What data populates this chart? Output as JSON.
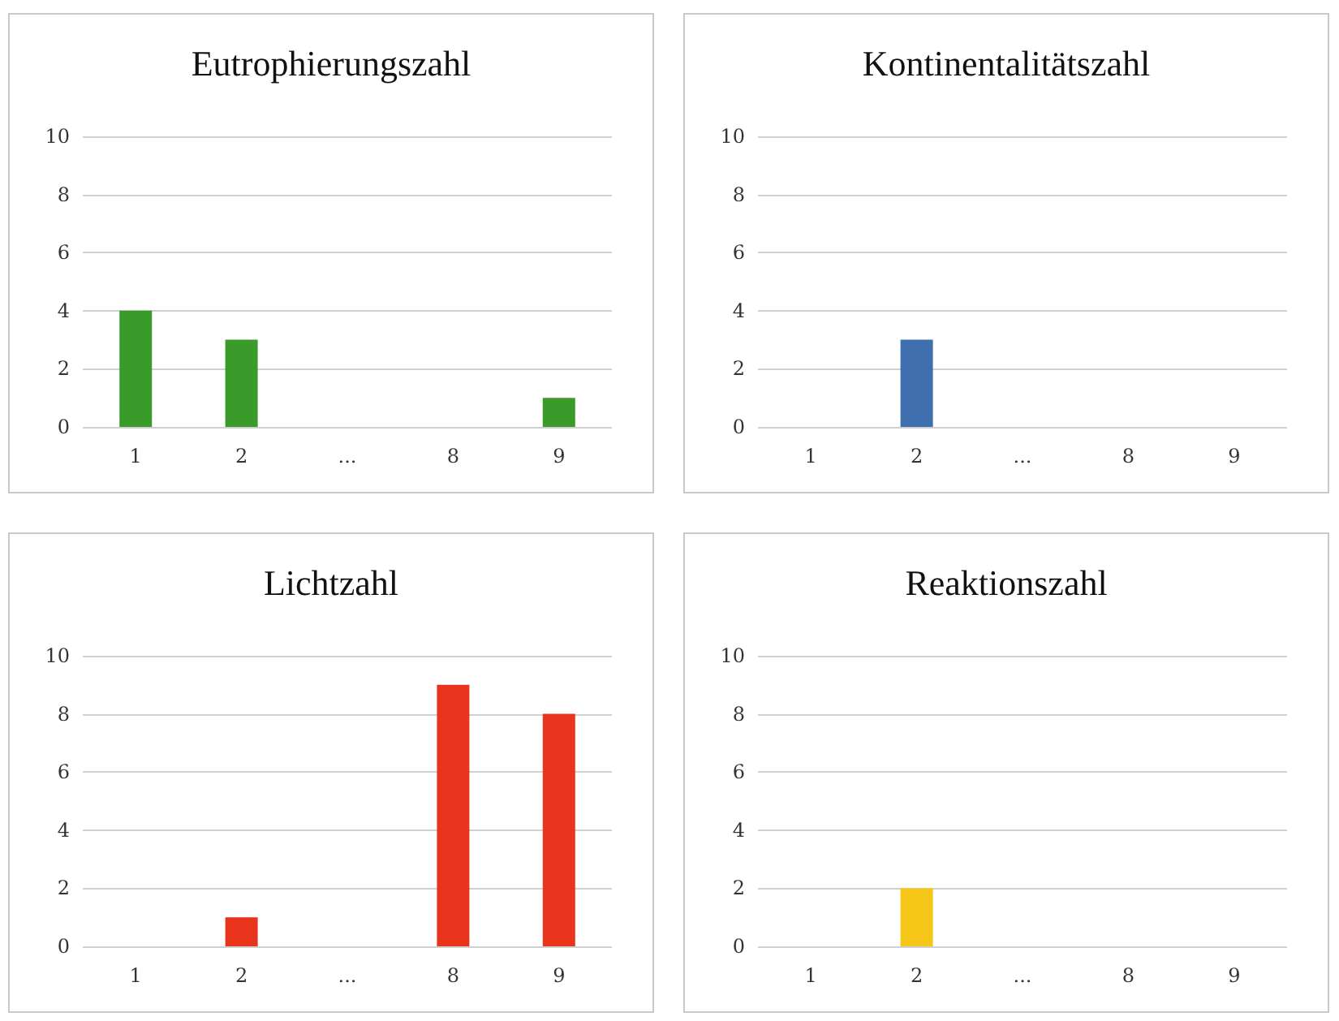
{
  "chart_data": [
    {
      "type": "bar",
      "title": "Eutrophierungszahl",
      "categories": [
        "1",
        "2",
        "...",
        "8",
        "9"
      ],
      "series": [
        {
          "color": "#3a9a2a",
          "values": [
            4,
            3,
            null,
            null,
            1
          ]
        }
      ],
      "ylim": [
        0,
        10
      ],
      "yticks": [
        0,
        2,
        4,
        6,
        8,
        10
      ],
      "grid": "y"
    },
    {
      "type": "bar",
      "title": "Kontinentalitätszahl",
      "categories": [
        "1",
        "2",
        "...",
        "8",
        "9"
      ],
      "series": [
        {
          "color": "#3f6fae",
          "values": [
            null,
            3,
            null,
            null,
            null
          ]
        }
      ],
      "ylim": [
        0,
        10
      ],
      "yticks": [
        0,
        2,
        4,
        6,
        8,
        10
      ],
      "grid": "y"
    },
    {
      "type": "bar",
      "title": "Lichtzahl",
      "categories": [
        "1",
        "2",
        "...",
        "8",
        "9"
      ],
      "series": [
        {
          "color": "#e8341c",
          "values": [
            null,
            1,
            null,
            9,
            8
          ]
        }
      ],
      "ylim": [
        0,
        10
      ],
      "yticks": [
        0,
        2,
        4,
        6,
        8,
        10
      ],
      "grid": "y"
    },
    {
      "type": "bar",
      "title": "Reaktionszahl",
      "categories": [
        "1",
        "2",
        "...",
        "8",
        "9"
      ],
      "series": [
        {
          "color": "#f5c518",
          "values": [
            null,
            2,
            null,
            null,
            null
          ]
        }
      ],
      "ylim": [
        0,
        10
      ],
      "yticks": [
        0,
        2,
        4,
        6,
        8,
        10
      ],
      "grid": "y"
    }
  ]
}
